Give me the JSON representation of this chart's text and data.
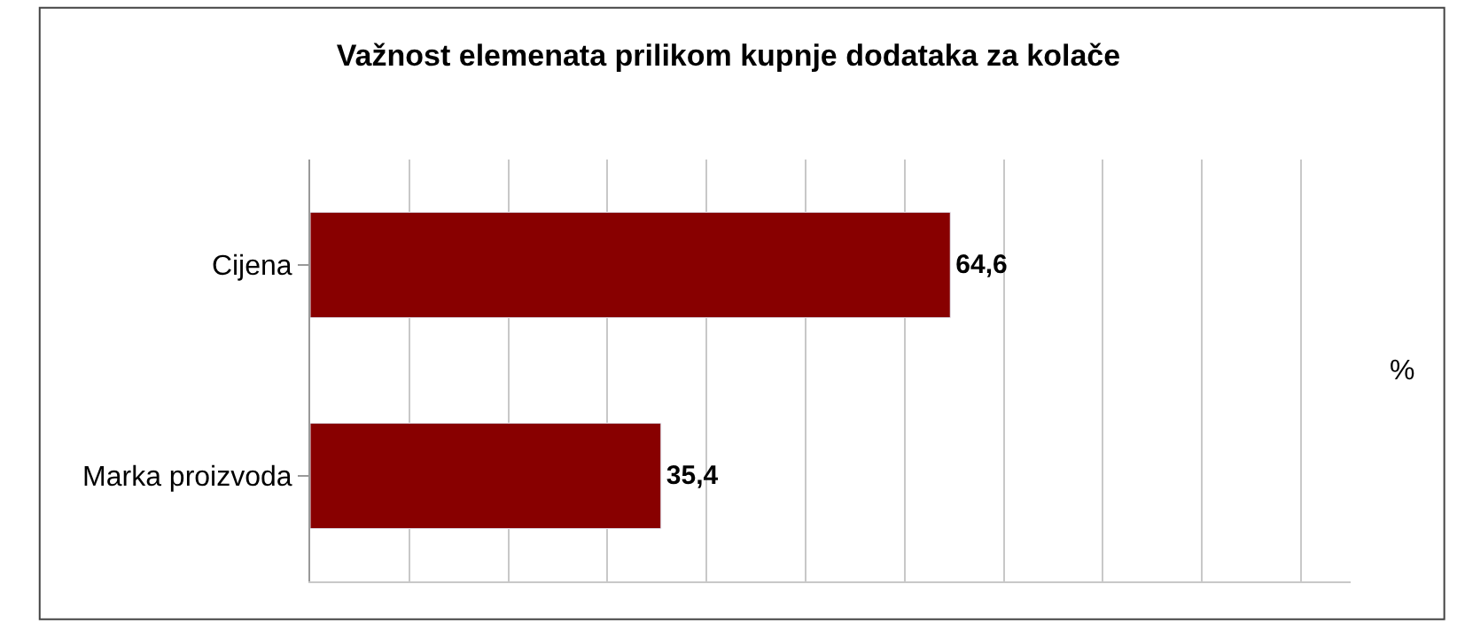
{
  "chart_data": {
    "type": "bar",
    "orientation": "horizontal",
    "title": "Važnost elemenata prilikom kupnje dodataka za kolače",
    "categories": [
      "Cijena",
      "Marka proizvoda"
    ],
    "values": [
      64.6,
      35.4
    ],
    "color": "#880000",
    "value_labels": [
      "64,6",
      "35,4"
    ],
    "xlim": [
      0,
      105
    ],
    "xticks": [
      {
        "value": 0,
        "label": null
      },
      {
        "value": 10,
        "label": null
      },
      {
        "value": 20,
        "label": null
      },
      {
        "value": 30,
        "label": null
      },
      {
        "value": 40,
        "label": null
      },
      {
        "value": 50,
        "label": null
      },
      {
        "value": 60,
        "label": null
      },
      {
        "value": 70,
        "label": null
      },
      {
        "value": 80,
        "label": null
      },
      {
        "value": 90,
        "label": null
      },
      {
        "value": 100,
        "label": null
      }
    ],
    "tick_labels": "y",
    "grid": "x",
    "legend": false,
    "annotations": [
      "%"
    ]
  }
}
